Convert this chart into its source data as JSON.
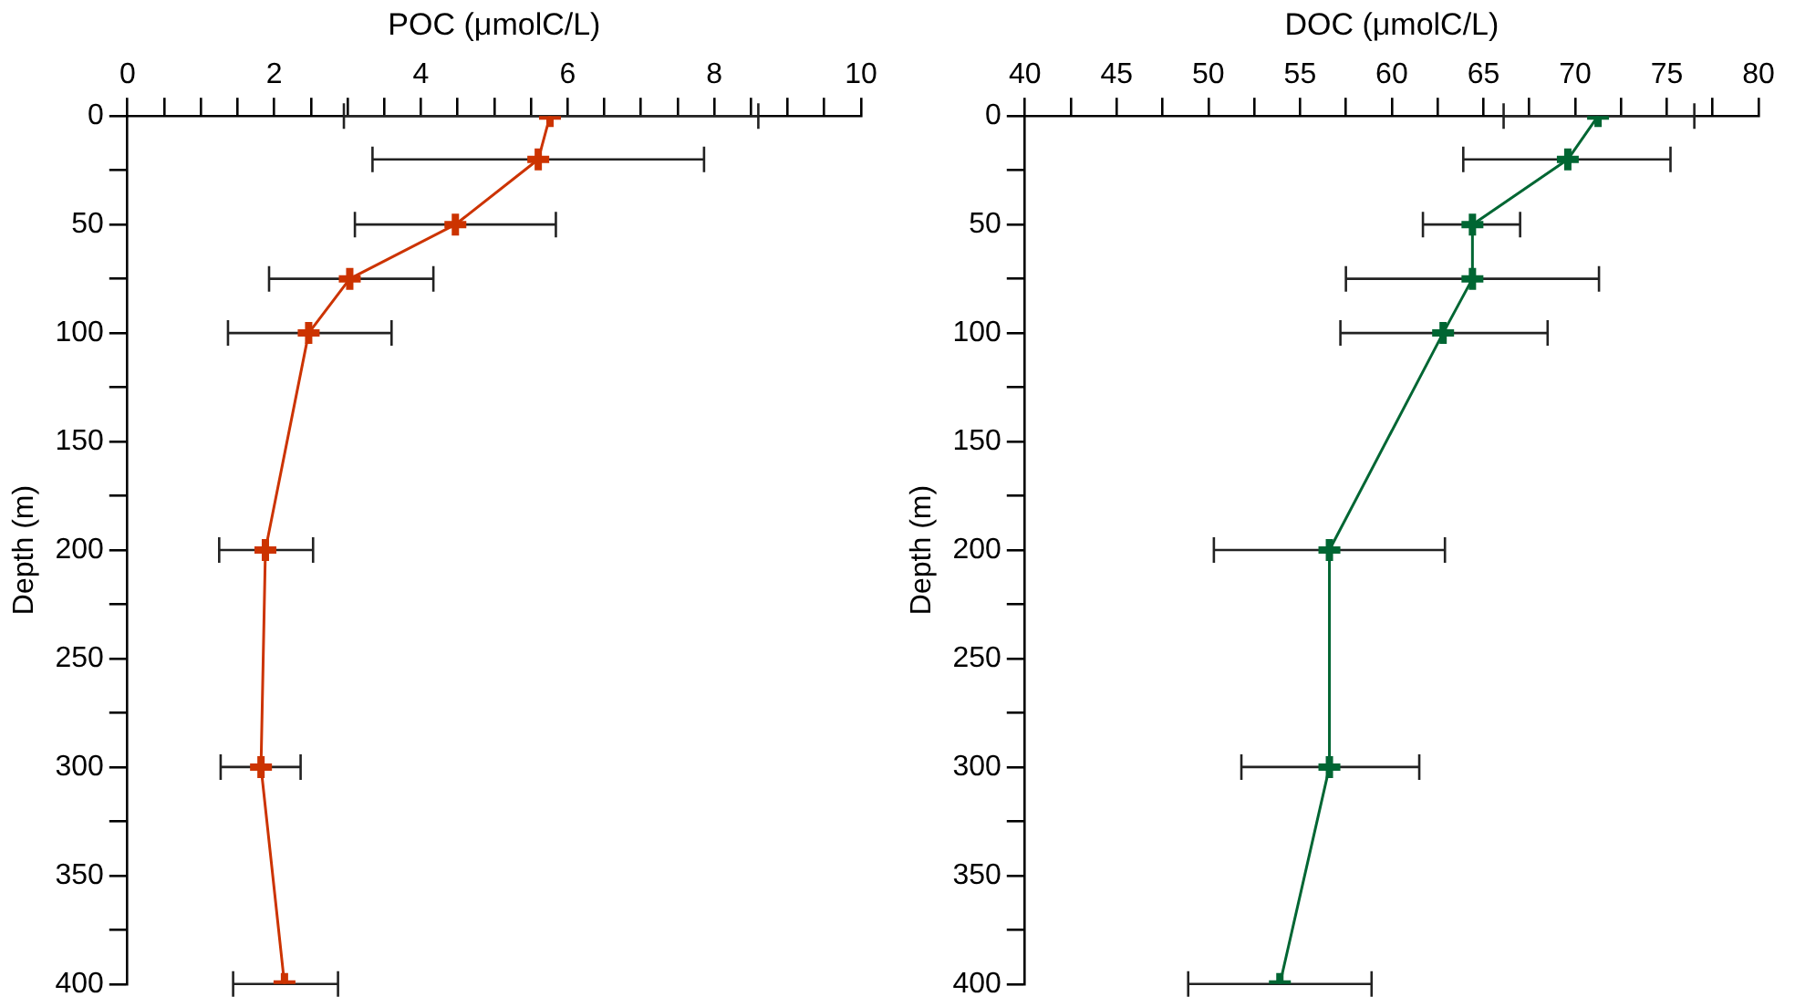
{
  "chart_data": [
    {
      "type": "line",
      "xlabel": "POC (μmolC/L)",
      "ylabel": "Depth (m)",
      "marker": "cross",
      "line_style": "solid",
      "grid": false,
      "legend": false,
      "series": [
        {
          "color": "#cc3300",
          "x": [
            5.76,
            5.6,
            4.47,
            3.03,
            2.47,
            1.88,
            1.82,
            2.14
          ],
          "values": [
            0,
            20,
            50,
            75,
            100,
            200,
            300,
            400
          ],
          "xerrors": [
            [
              2.95,
              8.6
            ],
            [
              3.34,
              7.86
            ],
            [
              3.1,
              5.84
            ],
            [
              1.93,
              4.17
            ],
            [
              1.37,
              3.6
            ],
            [
              1.25,
              2.53
            ],
            [
              1.27,
              2.36
            ],
            [
              1.44,
              2.87
            ]
          ]
        }
      ],
      "xlim": [
        0,
        10
      ],
      "xticks": [
        0,
        {
          "value": 0.5,
          "label": null
        },
        {
          "value": 1,
          "label": null
        },
        {
          "value": 1.5,
          "label": null
        },
        2,
        {
          "value": 2.5,
          "label": null
        },
        {
          "value": 3,
          "label": null
        },
        {
          "value": 3.5,
          "label": null
        },
        4,
        {
          "value": 4.5,
          "label": null
        },
        {
          "value": 5,
          "label": null
        },
        {
          "value": 5.5,
          "label": null
        },
        6,
        {
          "value": 6.5,
          "label": null
        },
        {
          "value": 7,
          "label": null
        },
        {
          "value": 7.5,
          "label": null
        },
        8,
        {
          "value": 8.5,
          "label": null
        },
        {
          "value": 9,
          "label": null
        },
        {
          "value": 9.5,
          "label": null
        },
        10
      ],
      "ylim": [
        400,
        0
      ],
      "yticks": [
        0,
        {
          "value": 25,
          "label": null
        },
        50,
        {
          "value": 75,
          "label": null
        },
        100,
        {
          "value": 125,
          "label": null
        },
        150,
        {
          "value": 175,
          "label": null
        },
        200,
        {
          "value": 225,
          "label": null
        },
        250,
        {
          "value": 275,
          "label": null
        },
        300,
        {
          "value": 325,
          "label": null
        },
        350,
        {
          "value": 375,
          "label": null
        },
        400
      ]
    },
    {
      "type": "line",
      "xlabel": "DOC (μmolC/L)",
      "ylabel": "Depth (m)",
      "marker": "cross",
      "line_style": "solid",
      "grid": false,
      "legend": false,
      "series": [
        {
          "color": "#006633",
          "x": [
            71.25,
            69.6,
            64.4,
            64.4,
            62.8,
            56.6,
            56.6,
            53.9
          ],
          "values": [
            0,
            20,
            50,
            75,
            100,
            200,
            300,
            400
          ],
          "xerrors": [
            [
              66.1,
              76.5
            ],
            [
              63.9,
              75.2
            ],
            [
              61.7,
              67.0
            ],
            [
              57.5,
              71.3
            ],
            [
              57.2,
              68.5
            ],
            [
              50.3,
              62.9
            ],
            [
              51.8,
              61.5
            ],
            [
              48.9,
              58.9
            ]
          ]
        }
      ],
      "xlim": [
        40,
        80
      ],
      "xticks": [
        40,
        {
          "value": 42.5,
          "label": null
        },
        45,
        {
          "value": 47.5,
          "label": null
        },
        50,
        {
          "value": 52.5,
          "label": null
        },
        55,
        {
          "value": 57.5,
          "label": null
        },
        60,
        {
          "value": 62.5,
          "label": null
        },
        65,
        {
          "value": 67.5,
          "label": null
        },
        70,
        {
          "value": 72.5,
          "label": null
        },
        75,
        {
          "value": 77.5,
          "label": null
        },
        80
      ],
      "ylim": [
        400,
        0
      ],
      "yticks": [
        0,
        {
          "value": 25,
          "label": null
        },
        50,
        {
          "value": 75,
          "label": null
        },
        100,
        {
          "value": 125,
          "label": null
        },
        150,
        {
          "value": 175,
          "label": null
        },
        200,
        {
          "value": 225,
          "label": null
        },
        250,
        {
          "value": 275,
          "label": null
        },
        300,
        {
          "value": 325,
          "label": null
        },
        350,
        {
          "value": 375,
          "label": null
        },
        400
      ]
    }
  ]
}
